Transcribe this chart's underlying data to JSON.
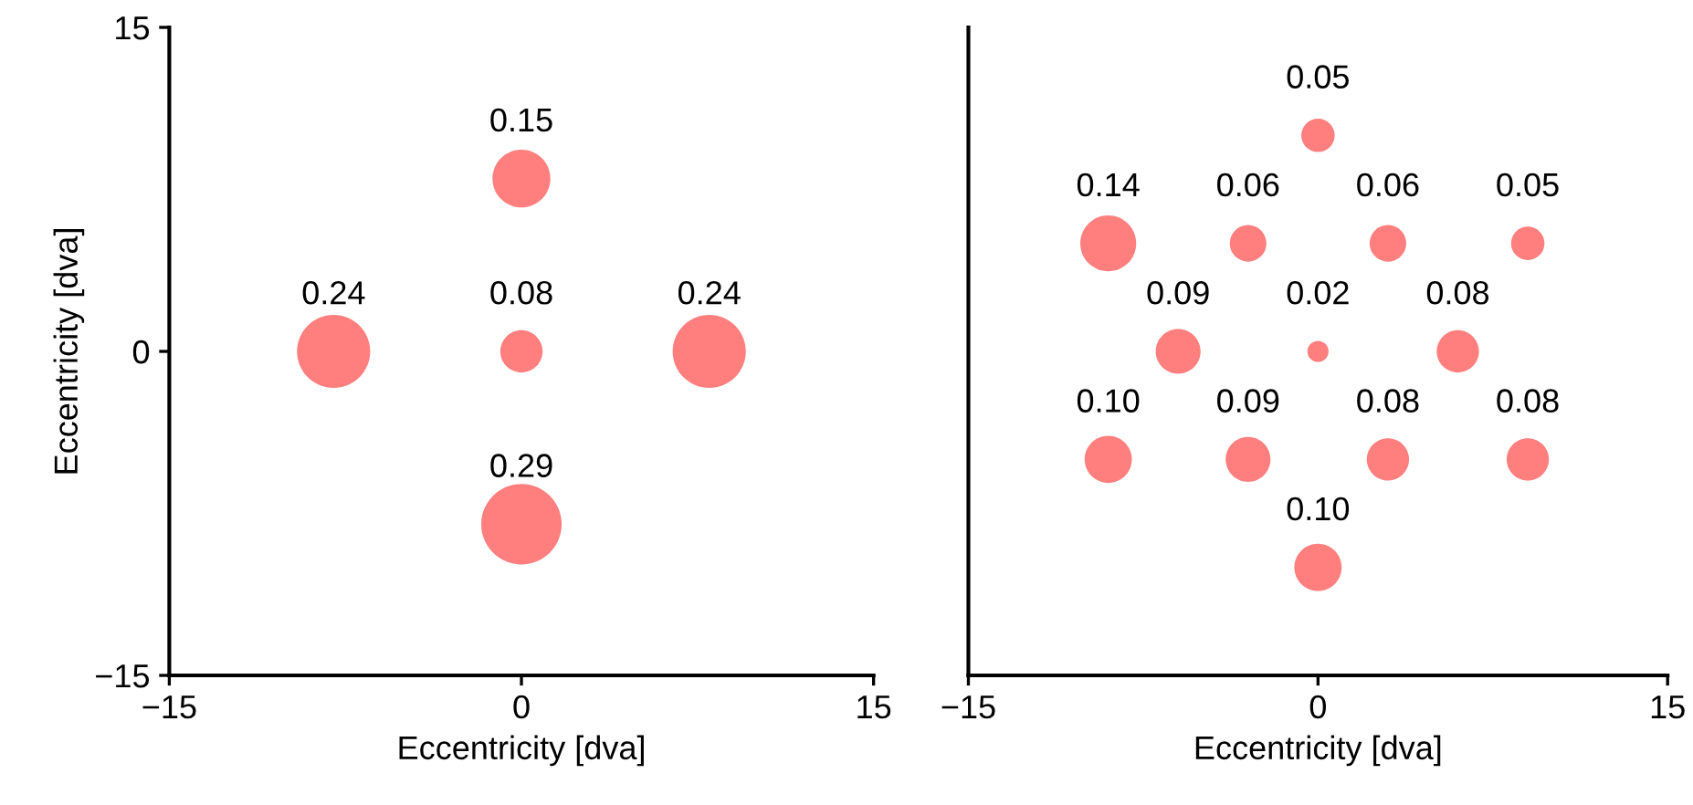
{
  "chart_data": [
    {
      "type": "bubble",
      "xlabel": "Eccentricity [dva]",
      "ylabel": "Eccentricity [dva]",
      "xlim": [
        -15,
        15
      ],
      "ylim": [
        -15,
        15
      ],
      "xticks": [
        -15,
        0,
        15
      ],
      "yticks": [
        -15,
        0,
        15
      ],
      "grid": false,
      "series": [
        {
          "color": "#ff7f7f",
          "x": [
            -8,
            0,
            8,
            0,
            0
          ],
          "values": [
            0,
            0,
            0,
            8,
            -8
          ],
          "sizes": [
            0.24,
            0.08,
            0.24,
            0.15,
            0.29
          ],
          "value_labels": [
            "0.24",
            "0.08",
            "0.24",
            "0.15",
            "0.29"
          ]
        }
      ]
    },
    {
      "type": "bubble",
      "xlabel": "Eccentricity [dva]",
      "xlim": [
        -15,
        15
      ],
      "ylim": [
        -15,
        15
      ],
      "xticks": [
        -15,
        0,
        15
      ],
      "tick_labels": "x",
      "grid": false,
      "series": [
        {
          "color": "#ff7f7f",
          "x": [
            0,
            -9,
            -3,
            3,
            9,
            -6,
            0,
            6,
            -9,
            -3,
            3,
            9,
            0
          ],
          "values": [
            10,
            5,
            5,
            5,
            5,
            0,
            0,
            0,
            -5,
            -5,
            -5,
            -5,
            -10
          ],
          "sizes": [
            0.05,
            0.14,
            0.06,
            0.06,
            0.05,
            0.09,
            0.02,
            0.08,
            0.1,
            0.09,
            0.08,
            0.08,
            0.1
          ],
          "value_labels": [
            "0.05",
            "0.14",
            "0.06",
            "0.06",
            "0.05",
            "0.09",
            "0.02",
            "0.08",
            "0.10",
            "0.09",
            "0.08",
            "0.08",
            "0.10"
          ]
        }
      ]
    }
  ]
}
